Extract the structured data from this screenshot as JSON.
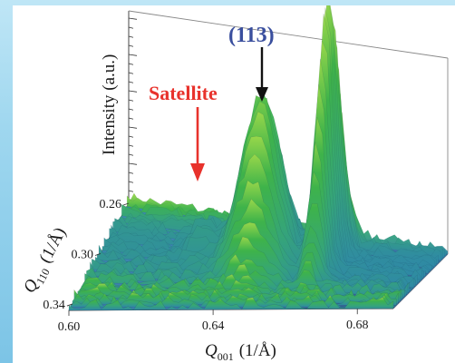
{
  "chart_data": {
    "type": "surface",
    "zlabel": "Intensity (a.u.)",
    "xlabel_symbol": "Q",
    "xlabel_sub": "001",
    "xlabel_unit": "(1/Å)",
    "ylabel_symbol": "Q",
    "ylabel_sub": "110",
    "ylabel_unit": "(1/Å)",
    "x_ticks": [
      "0.60",
      "0.64",
      "0.68"
    ],
    "y_ticks": [
      "0.26",
      "0.30",
      "0.34"
    ],
    "xlim": [
      0.6,
      0.69
    ],
    "ylim": [
      0.26,
      0.345
    ],
    "peaks": [
      {
        "label": "(113)",
        "q001": 0.645,
        "q110": 0.3,
        "relative_height": 0.62
      },
      {
        "label": "Satellite",
        "q001": 0.628,
        "q110": 0.295,
        "relative_height": 0.1
      },
      {
        "label": "",
        "q001": 0.662,
        "q110": 0.29,
        "relative_height": 1.0
      }
    ],
    "annotations": [
      {
        "text": "(113)",
        "color": "#3a4f9e"
      },
      {
        "text": "Satellite",
        "color": "#e8322c"
      }
    ]
  },
  "colors": {
    "peak_green": "#3bb54a",
    "surface_teal": "#2e8fa8",
    "surface_blue": "#2c4f9e",
    "arrow_black": "#111111",
    "arrow_red": "#e8322c"
  }
}
